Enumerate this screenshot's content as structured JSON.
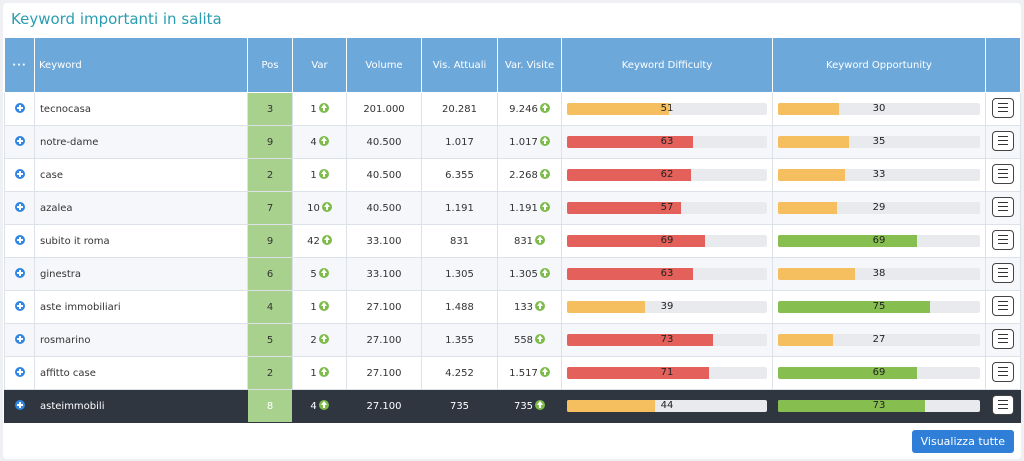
{
  "title": "Keyword importanti in salita",
  "table": {
    "columns": [
      "Keyword",
      "Pos",
      "Var",
      "Volume",
      "Vis. Attuali",
      "Var. Visite",
      "Keyword Difficulty",
      "Keyword Opportunity"
    ],
    "rows": [
      {
        "keyword": "tecnocasa",
        "pos": 3,
        "var": 1,
        "volume": "201.000",
        "visits": "20.281",
        "visits_change": "9.246",
        "difficulty": 51,
        "difficulty_color": "#f5bf5f",
        "opportunity": 30,
        "opportunity_color": "#f5bf5f"
      },
      {
        "keyword": "notre-dame",
        "pos": 9,
        "var": 4,
        "volume": "40.500",
        "visits": "1.017",
        "visits_change": "1.017",
        "difficulty": 63,
        "difficulty_color": "#e3605b",
        "opportunity": 35,
        "opportunity_color": "#f5bf5f"
      },
      {
        "keyword": "case",
        "pos": 2,
        "var": 1,
        "volume": "40.500",
        "visits": "6.355",
        "visits_change": "2.268",
        "difficulty": 62,
        "difficulty_color": "#e3605b",
        "opportunity": 33,
        "opportunity_color": "#f5bf5f"
      },
      {
        "keyword": "azalea",
        "pos": 7,
        "var": 10,
        "volume": "40.500",
        "visits": "1.191",
        "visits_change": "1.191",
        "difficulty": 57,
        "difficulty_color": "#e3605b",
        "opportunity": 29,
        "opportunity_color": "#f5bf5f"
      },
      {
        "keyword": "subito it roma",
        "pos": 9,
        "var": 42,
        "volume": "33.100",
        "visits": "831",
        "visits_change": "831",
        "difficulty": 69,
        "difficulty_color": "#e3605b",
        "opportunity": 69,
        "opportunity_color": "#86bf50"
      },
      {
        "keyword": "ginestra",
        "pos": 6,
        "var": 5,
        "volume": "33.100",
        "visits": "1.305",
        "visits_change": "1.305",
        "difficulty": 63,
        "difficulty_color": "#e3605b",
        "opportunity": 38,
        "opportunity_color": "#f5bf5f"
      },
      {
        "keyword": "aste immobiliari",
        "pos": 4,
        "var": 1,
        "volume": "27.100",
        "visits": "1.488",
        "visits_change": "133",
        "difficulty": 39,
        "difficulty_color": "#f5bf5f",
        "opportunity": 75,
        "opportunity_color": "#86bf50"
      },
      {
        "keyword": "rosmarino",
        "pos": 5,
        "var": 2,
        "volume": "27.100",
        "visits": "1.355",
        "visits_change": "558",
        "difficulty": 73,
        "difficulty_color": "#e3605b",
        "opportunity": 27,
        "opportunity_color": "#f5bf5f"
      },
      {
        "keyword": "affitto case",
        "pos": 2,
        "var": 1,
        "volume": "27.100",
        "visits": "4.252",
        "visits_change": "1.517",
        "difficulty": 71,
        "difficulty_color": "#e3605b",
        "opportunity": 69,
        "opportunity_color": "#86bf50"
      },
      {
        "keyword": "asteimmobili",
        "pos": 8,
        "var": 4,
        "volume": "27.100",
        "visits": "735",
        "visits_change": "735",
        "difficulty": 44,
        "difficulty_color": "#f5bf5f",
        "opportunity": 73,
        "opportunity_color": "#86bf50",
        "selected": true
      }
    ]
  },
  "button": "Visualizza tutte"
}
